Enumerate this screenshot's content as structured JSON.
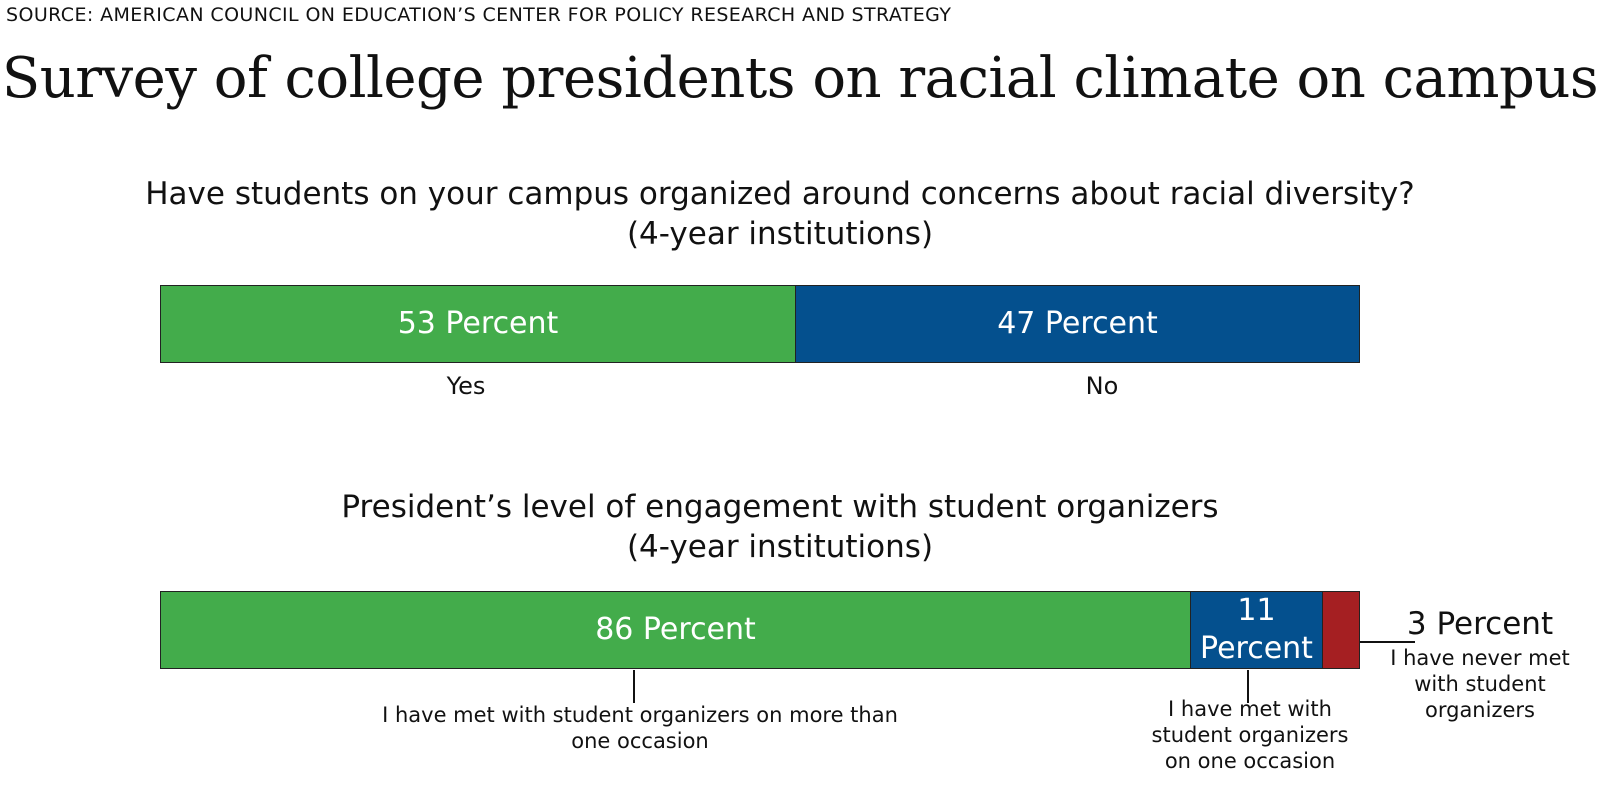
{
  "source": "SOURCE: AMERICAN COUNCIL ON EDUCATION’S CENTER FOR POLICY RESEARCH AND STRATEGY",
  "title": "Survey of college presidents on racial climate on campus",
  "colors": {
    "green": "#43ac4b",
    "blue": "#04508e",
    "red": "#a51f22"
  },
  "chart_data": [
    {
      "type": "bar",
      "stacked": true,
      "orientation": "horizontal",
      "title_lines": [
        "Have students on your campus organized around concerns about racial diversity?",
        "(4-year institutions)"
      ],
      "series": [
        {
          "name": "Yes",
          "value": 53,
          "value_label": "53 Percent",
          "color": "#43ac4b"
        },
        {
          "name": "No",
          "value": 47,
          "value_label": "47 Percent",
          "color": "#04508e"
        }
      ]
    },
    {
      "type": "bar",
      "stacked": true,
      "orientation": "horizontal",
      "title_lines": [
        "President’s level of engagement with student organizers",
        "(4-year institutions)"
      ],
      "series": [
        {
          "name": "I have met with student organizers on more than one occasion",
          "name_lines": [
            "I have met with student organizers on more than",
            "one occasion"
          ],
          "value": 86,
          "value_label": "86 Percent",
          "color": "#43ac4b"
        },
        {
          "name": "I have met with student organizers on one occasion",
          "name_lines": [
            "I have met with",
            "student organizers",
            "on one occasion"
          ],
          "value": 11,
          "value_label": "11 Percent",
          "value_label_lines": [
            "11",
            "Percent"
          ],
          "color": "#04508e"
        },
        {
          "name": "I have never met with student organizers",
          "name_lines": [
            "I have never met",
            "with student",
            "organizers"
          ],
          "value": 3,
          "value_label": "3 Percent",
          "color": "#a51f22"
        }
      ]
    }
  ]
}
